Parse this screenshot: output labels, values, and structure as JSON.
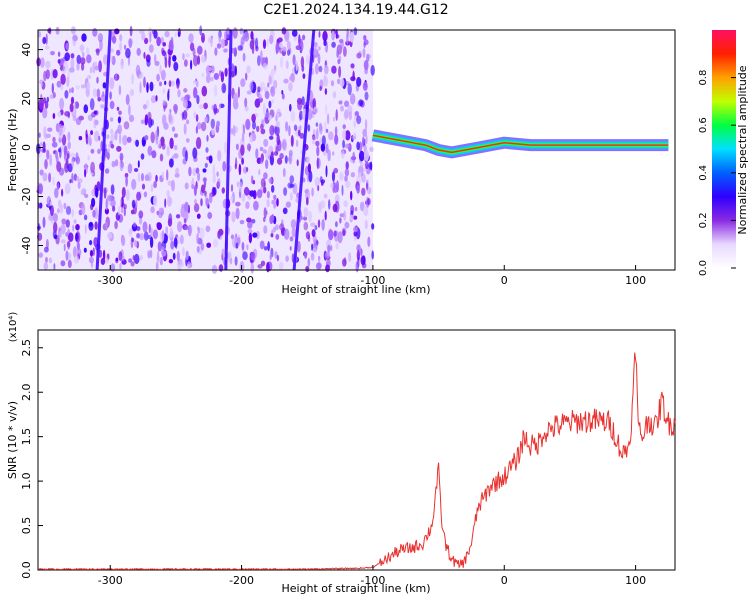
{
  "title": "C2E1.2024.134.19.44.G12",
  "chart_data": [
    {
      "type": "heatmap",
      "xlabel": "Height of straight line (km)",
      "ylabel": "Frequency (Hz)",
      "xlim": [
        -355,
        130
      ],
      "ylim": [
        -50,
        48
      ],
      "xticks": [
        -300,
        -200,
        -100,
        0,
        100
      ],
      "yticks": [
        -40,
        -20,
        0,
        20,
        40
      ],
      "colorbar": {
        "label": "Normalized spectral amplitude",
        "range": [
          0,
          1
        ],
        "ticks": [
          0.0,
          0.2,
          0.4,
          0.6,
          0.8
        ],
        "colors": [
          "#ffffff",
          "#e8d8ff",
          "#8a2be2",
          "#2f00ff",
          "#0060ff",
          "#00e0ff",
          "#00ff40",
          "#c0ff00",
          "#ffa000",
          "#ff2000",
          "#ff1060"
        ]
      },
      "noise_region": {
        "x": [
          -355,
          -100
        ],
        "y": [
          -50,
          48
        ]
      },
      "signal_track": {
        "x": [
          -100,
          -90,
          -80,
          -70,
          -60,
          -50,
          -40,
          -30,
          -20,
          -10,
          0,
          20,
          40,
          60,
          80,
          100,
          125
        ],
        "y": [
          5,
          4,
          3,
          2,
          1,
          -1,
          -2,
          -1,
          0,
          1,
          2,
          1,
          1,
          1,
          1,
          1,
          1
        ]
      },
      "streaks": [
        {
          "x_top": -300,
          "x_bottom": -310
        },
        {
          "x_top": -145,
          "x_bottom": -160
        },
        {
          "x_top": -208,
          "x_bottom": -212
        }
      ]
    },
    {
      "type": "line",
      "xlabel": "Height of straight line (km)",
      "ylabel": "SNR (10 * v/v)",
      "scale_label": "(x10⁴)",
      "xlim": [
        -355,
        130
      ],
      "ylim": [
        0,
        2.7
      ],
      "xticks": [
        -300,
        -200,
        -100,
        0,
        100
      ],
      "yticks": [
        0.0,
        0.5,
        1.0,
        1.5,
        2.0,
        2.5
      ],
      "series": [
        {
          "color": "#e8322f",
          "x": [
            -355,
            -300,
            -250,
            -200,
            -150,
            -110,
            -100,
            -90,
            -80,
            -70,
            -62,
            -55,
            -52,
            -50,
            -48,
            -45,
            -40,
            -35,
            -30,
            -25,
            -20,
            -10,
            0,
            10,
            15,
            20,
            25,
            30,
            40,
            50,
            60,
            70,
            80,
            85,
            90,
            95,
            98,
            100,
            102,
            105,
            110,
            115,
            120,
            125,
            130
          ],
          "y": [
            0.01,
            0.01,
            0.01,
            0.01,
            0.01,
            0.02,
            0.03,
            0.12,
            0.22,
            0.25,
            0.3,
            0.5,
            0.9,
            1.1,
            0.6,
            0.3,
            0.12,
            0.05,
            0.1,
            0.3,
            0.7,
            0.95,
            1.05,
            1.25,
            1.5,
            1.4,
            1.4,
            1.55,
            1.62,
            1.66,
            1.68,
            1.68,
            1.66,
            1.5,
            1.3,
            1.4,
            1.9,
            2.55,
            1.6,
            1.5,
            1.7,
            1.6,
            1.9,
            1.65,
            1.65
          ]
        }
      ]
    }
  ]
}
